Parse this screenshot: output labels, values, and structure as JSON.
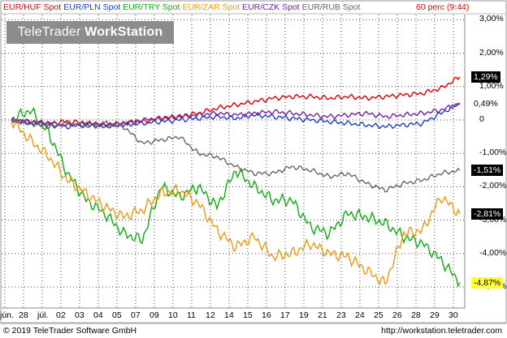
{
  "header": {
    "period_label": "60 perc (9:44)",
    "brand_light": "TeleTrader ",
    "brand_bold": "WorkStation"
  },
  "footer": {
    "copyright": "© 2019 TeleTrader Software GmbH",
    "url": "http://workstation.teletrader.com"
  },
  "chart_data": {
    "type": "line",
    "x_tick_labels": [
      "jún.",
      "28",
      "júl.",
      "02",
      "03",
      "04",
      "05",
      "07",
      "09",
      "10",
      "11",
      "12",
      "14",
      "15",
      "16",
      "17",
      "19",
      "21",
      "23",
      "24",
      "25",
      "26",
      "28",
      "29",
      "30"
    ],
    "y_tick_labels": [
      "3,00%",
      "2,00%",
      "1,00%",
      "0",
      "-1,00%",
      "-2,00%",
      "-3,00%",
      "-4,00%",
      "-5,00%"
    ],
    "ylim": [
      -5.4,
      3.3
    ],
    "grid": true,
    "legend_position": "top-left",
    "series": [
      {
        "name": "EUR/HUF Spot",
        "color": "#e00000",
        "last_label": "1,29%",
        "badge_bg": "#000000",
        "badge_fg": "#ffffff",
        "values": [
          0.0,
          -0.05,
          -0.1,
          -0.05,
          -0.1,
          -0.15,
          -0.1,
          -0.05,
          0.05,
          0.1,
          0.2,
          0.35,
          0.45,
          0.55,
          0.65,
          0.7,
          0.7,
          0.65,
          0.7,
          0.65,
          0.7,
          0.75,
          0.8,
          0.95,
          1.29
        ]
      },
      {
        "name": "EUR/PLN Spot",
        "color": "#1f3fbf",
        "last_label": "",
        "badge_bg": "",
        "badge_fg": "",
        "values": [
          0.0,
          -0.1,
          -0.15,
          -0.2,
          -0.15,
          -0.2,
          -0.15,
          -0.1,
          -0.05,
          0.0,
          0.05,
          0.1,
          0.05,
          0.15,
          0.1,
          0.05,
          0.0,
          -0.05,
          -0.1,
          -0.15,
          -0.2,
          -0.15,
          -0.1,
          0.2,
          0.5
        ]
      },
      {
        "name": "EUR/TRY Spot",
        "color": "#11aa11",
        "last_label": "-4,87%",
        "badge_bg": "#ffff33",
        "badge_fg": "#000000",
        "values": [
          0.0,
          0.3,
          -0.4,
          -1.6,
          -2.4,
          -2.8,
          -3.4,
          -3.6,
          -2.0,
          -2.3,
          -2.0,
          -2.6,
          -1.5,
          -2.0,
          -2.4,
          -2.4,
          -3.2,
          -3.4,
          -2.8,
          -2.9,
          -3.1,
          -3.5,
          -3.7,
          -4.2,
          -4.87
        ]
      },
      {
        "name": "EUR/ZAR Spot",
        "color": "#ee9911",
        "last_label": "-2,81%",
        "badge_bg": "#000000",
        "badge_fg": "#ffffff",
        "values": [
          0.0,
          -0.6,
          -1.1,
          -1.8,
          -2.2,
          -2.6,
          -2.9,
          -2.7,
          -2.2,
          -2.1,
          -2.5,
          -3.3,
          -3.8,
          -3.5,
          -4.1,
          -4.0,
          -3.7,
          -4.0,
          -4.1,
          -4.5,
          -4.9,
          -3.4,
          -3.3,
          -2.3,
          -2.81
        ]
      },
      {
        "name": "EUR/CZK Spot",
        "color": "#7a1fa0",
        "last_label": "0,49%",
        "badge_bg": "#ffffff",
        "badge_fg": "#000000",
        "values": [
          0.0,
          -0.05,
          -0.1,
          -0.15,
          -0.1,
          -0.15,
          -0.1,
          0.0,
          0.05,
          0.1,
          0.15,
          0.2,
          0.15,
          0.2,
          0.25,
          0.2,
          0.15,
          0.1,
          0.15,
          0.2,
          0.1,
          0.15,
          0.2,
          0.3,
          0.49
        ]
      },
      {
        "name": "EUR/RUB Spot",
        "color": "#666666",
        "last_label": "-1,51%",
        "badge_bg": "#000000",
        "badge_fg": "#ffffff",
        "values": [
          0.0,
          -0.1,
          -0.2,
          -0.1,
          -0.2,
          -0.1,
          -0.2,
          -0.7,
          -0.6,
          -0.5,
          -1.0,
          -1.1,
          -1.4,
          -1.6,
          -1.6,
          -1.4,
          -1.5,
          -1.7,
          -1.6,
          -1.9,
          -2.1,
          -1.9,
          -1.8,
          -1.6,
          -1.51
        ]
      }
    ]
  }
}
